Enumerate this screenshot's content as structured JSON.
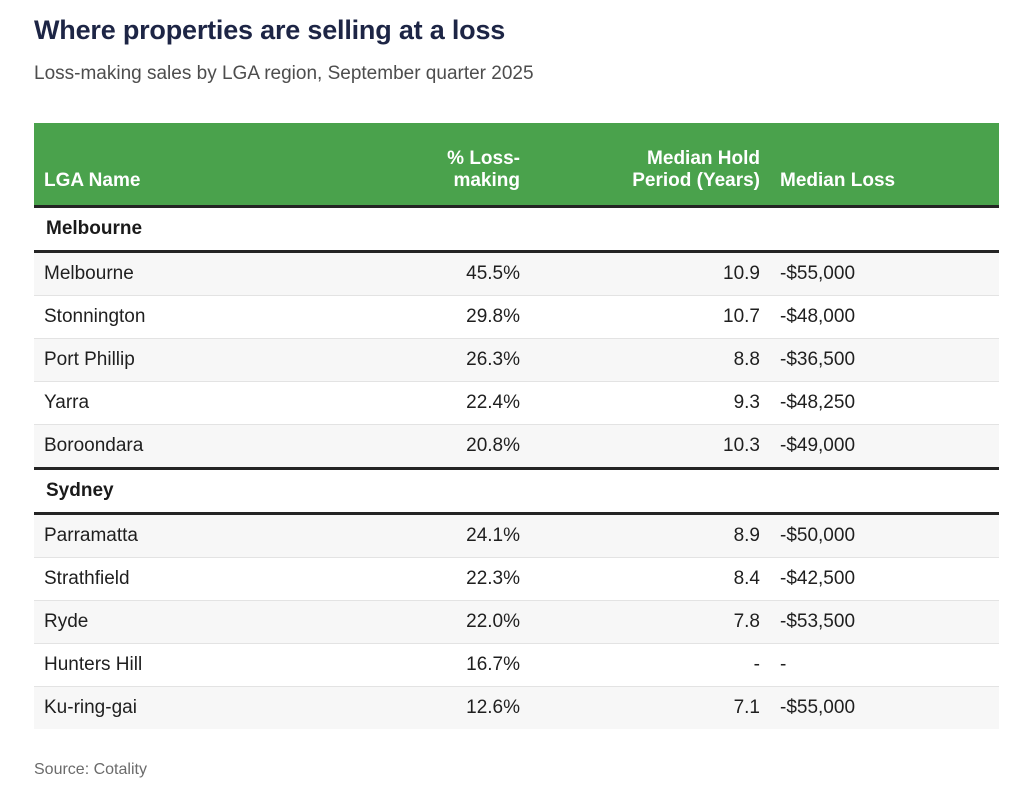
{
  "chart_data": {
    "type": "table",
    "title": "Where properties are selling at a loss",
    "subtitle": "Loss-making sales by LGA region, September quarter 2025",
    "source": "Source: Cotality",
    "columns": [
      {
        "label": "LGA Name",
        "align": "left"
      },
      {
        "label": "% Loss-making",
        "align": "right"
      },
      {
        "label": "Median Hold\nPeriod (Years)",
        "align": "right"
      },
      {
        "label": "Median Loss",
        "align": "left"
      }
    ],
    "sections": [
      {
        "label": "Melbourne",
        "rows": [
          {
            "lga": "Melbourne",
            "pct_loss_making": "45.5%",
            "median_hold_years": "10.9",
            "median_loss": "-$55,000"
          },
          {
            "lga": "Stonnington",
            "pct_loss_making": "29.8%",
            "median_hold_years": "10.7",
            "median_loss": "-$48,000"
          },
          {
            "lga": "Port Phillip",
            "pct_loss_making": "26.3%",
            "median_hold_years": "8.8",
            "median_loss": "-$36,500"
          },
          {
            "lga": "Yarra",
            "pct_loss_making": "22.4%",
            "median_hold_years": "9.3",
            "median_loss": "-$48,250"
          },
          {
            "lga": "Boroondara",
            "pct_loss_making": "20.8%",
            "median_hold_years": "10.3",
            "median_loss": "-$49,000"
          }
        ]
      },
      {
        "label": "Sydney",
        "rows": [
          {
            "lga": "Parramatta",
            "pct_loss_making": "24.1%",
            "median_hold_years": "8.9",
            "median_loss": "-$50,000"
          },
          {
            "lga": "Strathfield",
            "pct_loss_making": "22.3%",
            "median_hold_years": "8.4",
            "median_loss": "-$42,500"
          },
          {
            "lga": "Ryde",
            "pct_loss_making": "22.0%",
            "median_hold_years": "7.8",
            "median_loss": "-$53,500"
          },
          {
            "lga": "Hunters Hill",
            "pct_loss_making": "16.7%",
            "median_hold_years": "-",
            "median_loss": "-"
          },
          {
            "lga": "Ku-ring-gai",
            "pct_loss_making": "12.6%",
            "median_hold_years": "7.1",
            "median_loss": "-$55,000"
          }
        ]
      }
    ],
    "layout": {
      "header_background": "#4aa24c",
      "header_text_color": "#ffffff",
      "section_divider_color": "#242424",
      "alt_row_background": "#f7f7f7",
      "title_color": "#1d2545"
    }
  }
}
